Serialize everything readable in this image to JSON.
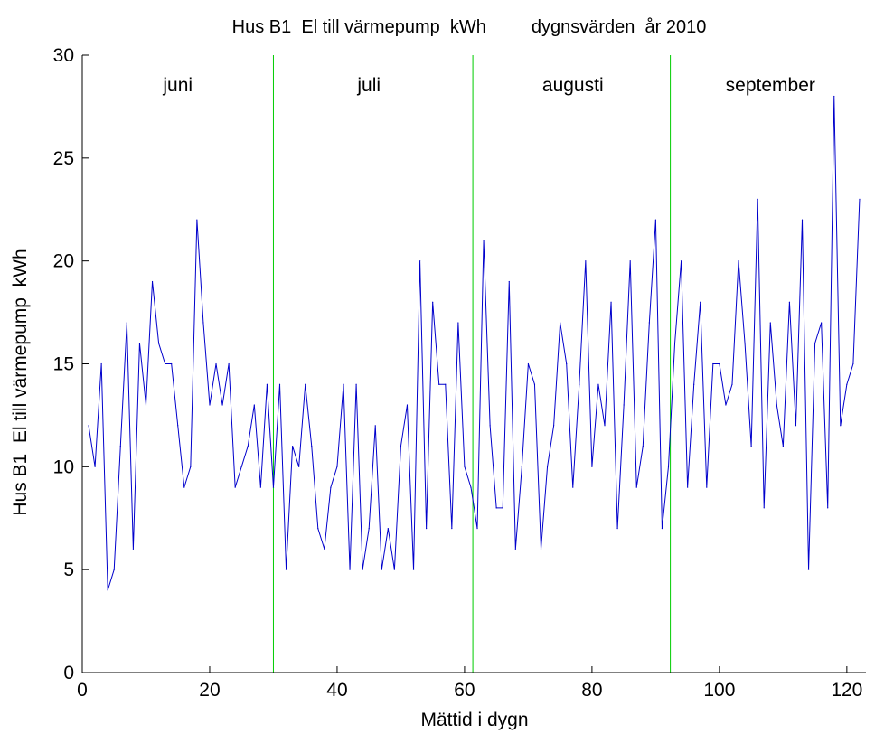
{
  "chart_data": {
    "type": "line",
    "title": "Hus B1  El till värmepump  kWh         dygnsvärden  år 2010",
    "xlabel": "Mättid i dygn",
    "ylabel": "Hus B1  El till värmepump  kWh",
    "xlim": [
      0,
      123
    ],
    "ylim": [
      0,
      30
    ],
    "x_ticks": [
      "0",
      "20",
      "40",
      "60",
      "80",
      "100",
      "120"
    ],
    "y_ticks": [
      "0",
      "5",
      "10",
      "15",
      "20",
      "25",
      "30"
    ],
    "grid": false,
    "series": [
      {
        "color": "#0000cc",
        "x": [
          1,
          2,
          3,
          4,
          5,
          6,
          7,
          8,
          9,
          10,
          11,
          12,
          13,
          14,
          15,
          16,
          17,
          18,
          19,
          20,
          21,
          22,
          23,
          24,
          25,
          26,
          27,
          28,
          29,
          30,
          31,
          32,
          33,
          34,
          35,
          36,
          37,
          38,
          39,
          40,
          41,
          42,
          43,
          44,
          45,
          46,
          47,
          48,
          49,
          50,
          51,
          52,
          53,
          54,
          55,
          56,
          57,
          58,
          59,
          60,
          61,
          62,
          63,
          64,
          65,
          66,
          67,
          68,
          69,
          70,
          71,
          72,
          73,
          74,
          75,
          76,
          77,
          78,
          79,
          80,
          81,
          82,
          83,
          84,
          85,
          86,
          87,
          88,
          89,
          90,
          91,
          92,
          93,
          94,
          95,
          96,
          97,
          98,
          99,
          100,
          101,
          102,
          103,
          104,
          105,
          106,
          107,
          108,
          109,
          110,
          111,
          112,
          113,
          114,
          115,
          116,
          117,
          118,
          119,
          120,
          121,
          122
        ],
        "values": [
          12,
          10,
          15,
          4,
          5,
          11,
          17,
          6,
          16,
          13,
          19,
          16,
          15,
          15,
          12,
          9,
          10,
          22,
          17,
          13,
          15,
          13,
          15,
          9,
          10,
          11,
          13,
          9,
          14,
          9,
          14,
          5,
          11,
          10,
          14,
          11,
          7,
          6,
          9,
          10,
          14,
          5,
          14,
          5,
          7,
          12,
          5,
          7,
          5,
          11,
          13,
          5,
          20,
          7,
          18,
          14,
          14,
          7,
          17,
          10,
          9,
          7,
          21,
          12,
          8,
          8,
          19,
          6,
          10,
          15,
          14,
          6,
          10,
          12,
          17,
          15,
          9,
          14,
          20,
          10,
          14,
          12,
          18,
          7,
          13,
          20,
          9,
          11,
          17,
          22,
          7,
          10,
          16,
          20,
          9,
          14,
          18,
          9,
          15,
          15,
          13,
          14,
          20,
          16,
          11,
          23,
          8,
          17,
          13,
          11,
          18,
          12,
          22,
          5,
          16,
          17,
          8,
          28,
          12,
          14,
          15,
          23
        ]
      }
    ],
    "vertical_lines": {
      "color": "#00cc00",
      "x": [
        30,
        61.3,
        92.3
      ]
    },
    "month_labels": [
      {
        "text": "juni",
        "x": 15
      },
      {
        "text": "juli",
        "x": 45
      },
      {
        "text": "augusti",
        "x": 77
      },
      {
        "text": "september",
        "x": 108
      }
    ]
  }
}
